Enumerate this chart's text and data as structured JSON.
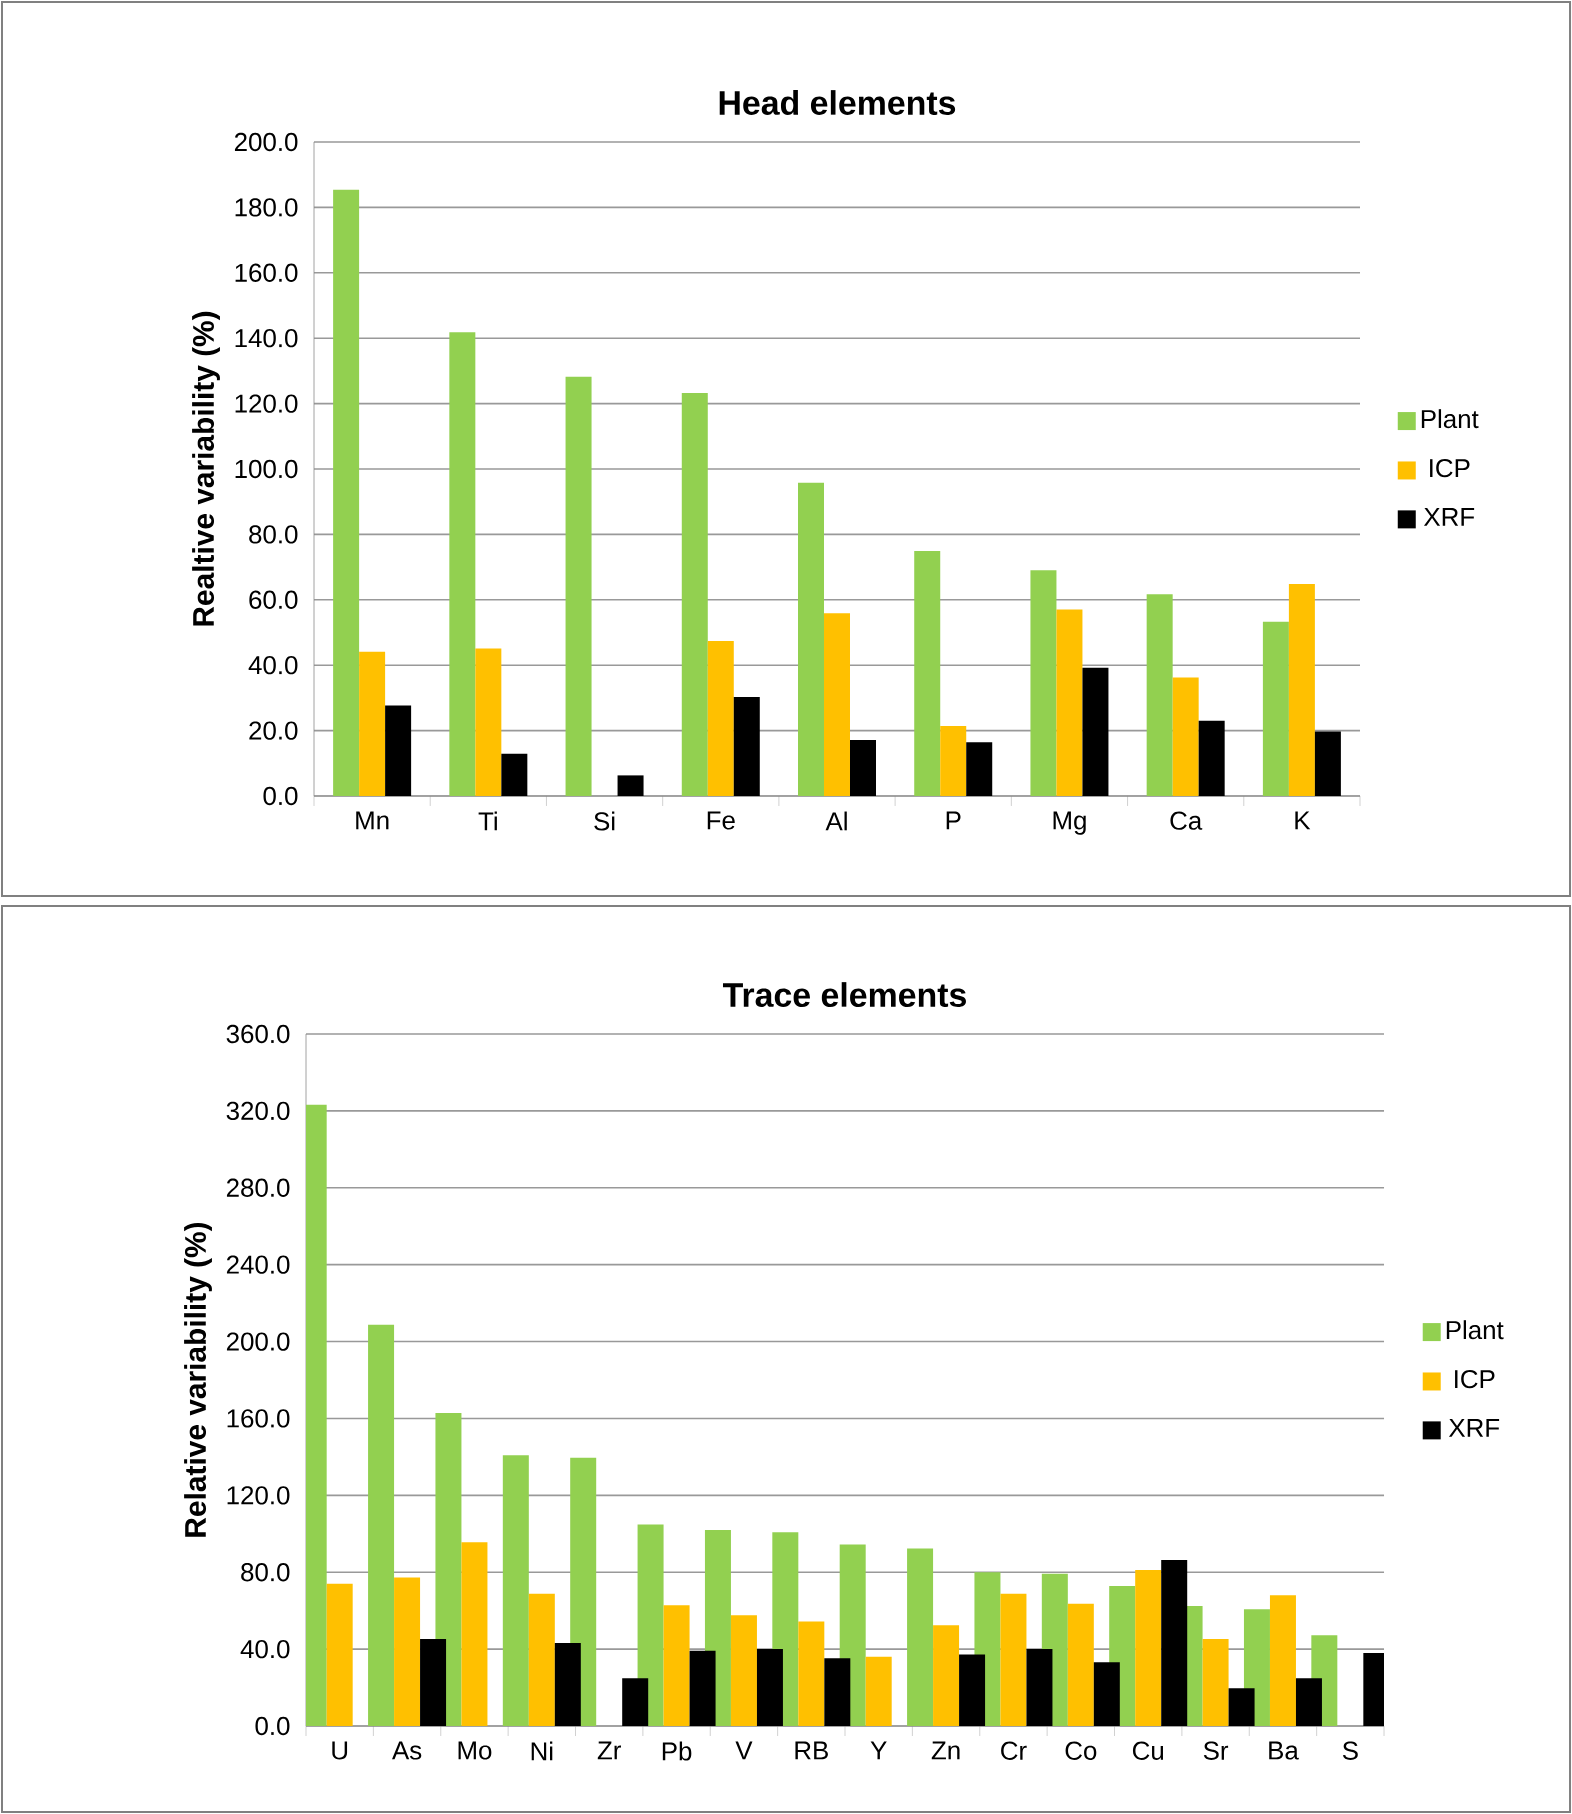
{
  "chart_data": [
    {
      "type": "bar",
      "title": "Head elements",
      "ylabel": "Realtive  variability (%)",
      "categories": [
        "Mn",
        "Ti",
        "Si",
        "Fe",
        "Al",
        "P",
        "Mg",
        "Ca",
        "K"
      ],
      "series": [
        {
          "name": "Plant",
          "color": "#92d050",
          "values": [
            185.4,
            141.8,
            128.2,
            123.2,
            95.8,
            74.9,
            69.0,
            61.7,
            53.3
          ]
        },
        {
          "name": "ICP",
          "color": "#ffc000",
          "values": [
            44.1,
            45.1,
            null,
            47.4,
            55.9,
            21.4,
            57.0,
            36.2,
            64.8
          ]
        },
        {
          "name": "XRF",
          "color": "#000000",
          "values": [
            27.7,
            12.9,
            6.3,
            30.3,
            17.1,
            16.4,
            39.2,
            23.0,
            19.7
          ]
        }
      ],
      "ylim": [
        0,
        200
      ],
      "yticks": [
        {
          "value": 0,
          "label": "0.0"
        },
        {
          "value": 20,
          "label": "20.0"
        },
        {
          "value": 40,
          "label": "40.0"
        },
        {
          "value": 60,
          "label": "60.0"
        },
        {
          "value": 80,
          "label": "80.0"
        },
        {
          "value": 100,
          "label": "100.0"
        },
        {
          "value": 120,
          "label": "120.0"
        },
        {
          "value": 140,
          "label": "140.0"
        },
        {
          "value": 160,
          "label": "160.0"
        },
        {
          "value": 180,
          "label": "180.0"
        },
        {
          "value": 200,
          "label": "200.0"
        }
      ],
      "grid": "y",
      "legend": "right"
    },
    {
      "type": "bar",
      "title": "Trace elements",
      "ylabel": "Relative  variability (%)",
      "categories": [
        "U",
        "As",
        "Mo",
        "Ni",
        "Zr",
        "Pb",
        "V",
        "RB",
        "Y",
        "Zn",
        "Cr",
        "Co",
        "Cu",
        "Sr",
        "Ba",
        "S"
      ],
      "series": [
        {
          "name": "Plant",
          "color": "#92d050",
          "values": [
            323.2,
            208.8,
            162.8,
            140.8,
            139.6,
            104.8,
            102.0,
            100.8,
            94.4,
            92.4,
            80.0,
            79.2,
            72.8,
            62.4,
            60.8,
            47.2
          ]
        },
        {
          "name": "ICP",
          "color": "#ffc000",
          "values": [
            74.0,
            77.2,
            95.6,
            68.8,
            null,
            62.8,
            57.6,
            54.4,
            36.0,
            52.4,
            68.8,
            63.6,
            81.2,
            45.2,
            68.0,
            null
          ]
        },
        {
          "name": "XRF",
          "color": "#000000",
          "values": [
            null,
            45.2,
            null,
            43.2,
            24.8,
            39.2,
            40.0,
            35.2,
            null,
            37.2,
            40.0,
            33.2,
            86.4,
            19.6,
            24.8,
            38.0
          ]
        }
      ],
      "ylim": [
        0,
        360
      ],
      "yticks": [
        {
          "value": 0,
          "label": "0.0"
        },
        {
          "value": 40,
          "label": "40.0"
        },
        {
          "value": 80,
          "label": "80.0"
        },
        {
          "value": 120,
          "label": "120.0"
        },
        {
          "value": 160,
          "label": "160.0"
        },
        {
          "value": 200,
          "label": "200.0"
        },
        {
          "value": 240,
          "label": "240.0"
        },
        {
          "value": 280,
          "label": "280.0"
        },
        {
          "value": 320,
          "label": "320.0"
        },
        {
          "value": 360,
          "label": "360.0"
        }
      ],
      "grid": "y",
      "legend": "right"
    }
  ]
}
